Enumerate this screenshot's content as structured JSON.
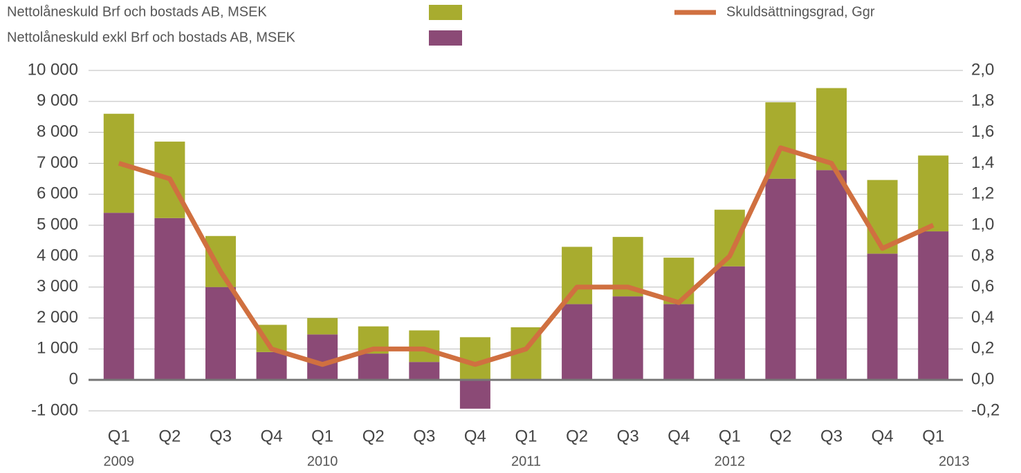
{
  "chart_data": {
    "type": "bar",
    "categories": [
      "Q1",
      "Q2",
      "Q3",
      "Q4",
      "Q1",
      "Q2",
      "Q3",
      "Q4",
      "Q1",
      "Q2",
      "Q3",
      "Q4",
      "Q1",
      "Q2",
      "Q3",
      "Q4",
      "Q1"
    ],
    "years": [
      "2009",
      null,
      null,
      null,
      "2010",
      null,
      null,
      null,
      "2011",
      null,
      null,
      null,
      "2012",
      null,
      null,
      null,
      "2013"
    ],
    "stacked": true,
    "series": [
      {
        "name": "Nettolåneskuld exkl Brf och bostads AB, MSEK",
        "color": "#8b4a76",
        "type": "bar",
        "values": [
          5400,
          5230,
          3000,
          900,
          1470,
          850,
          580,
          -930,
          0,
          2450,
          2700,
          2450,
          3670,
          6500,
          6780,
          4080,
          4800
        ]
      },
      {
        "name": "Nettolåneskuld Brf och bostads AB, MSEK",
        "color": "#a8ac2f",
        "type": "bar",
        "values": [
          3200,
          2470,
          1650,
          880,
          530,
          880,
          1020,
          1380,
          1700,
          1850,
          1920,
          1500,
          1830,
          2470,
          2650,
          2380,
          2450
        ]
      },
      {
        "name": "Skuldsättningsgrad, Ggr",
        "color": "#d07040",
        "type": "line",
        "axis": "y2",
        "values": [
          1.4,
          1.3,
          0.7,
          0.2,
          0.1,
          0.2,
          0.2,
          0.1,
          0.2,
          0.6,
          0.6,
          0.5,
          0.8,
          1.5,
          1.4,
          0.85,
          1.0
        ]
      }
    ],
    "ylim": [
      -1000,
      10000
    ],
    "yticks": [
      {
        "value": -1000,
        "label": "-1 000"
      },
      0,
      {
        "value": 1000,
        "label": "1 000"
      },
      {
        "value": 2000,
        "label": "2 000"
      },
      {
        "value": 3000,
        "label": "3 000"
      },
      {
        "value": 4000,
        "label": "4 000"
      },
      {
        "value": 5000,
        "label": "5 000"
      },
      {
        "value": 6000,
        "label": "6 000"
      },
      {
        "value": 7000,
        "label": "7 000"
      },
      {
        "value": 8000,
        "label": "8 000"
      },
      {
        "value": 9000,
        "label": "9 000"
      },
      {
        "value": 10000,
        "label": "10 000"
      }
    ],
    "y2lim": [
      -0.2,
      2.0
    ],
    "y2ticks": [
      {
        "value": -0.2,
        "label": "-0,2"
      },
      {
        "value": 0,
        "label": "0,0"
      },
      {
        "value": 0.2,
        "label": "0,2"
      },
      {
        "value": 0.4,
        "label": "0,4"
      },
      {
        "value": 0.6,
        "label": "0,6"
      },
      {
        "value": 0.8,
        "label": "0,8"
      },
      {
        "value": 1.0,
        "label": "1,0"
      },
      {
        "value": 1.2,
        "label": "1,2"
      },
      {
        "value": 1.4,
        "label": "1,4"
      },
      {
        "value": 1.6,
        "label": "1,6"
      },
      {
        "value": 1.8,
        "label": "1,8"
      },
      {
        "value": 2.0,
        "label": "2,0"
      }
    ],
    "grid": true
  }
}
